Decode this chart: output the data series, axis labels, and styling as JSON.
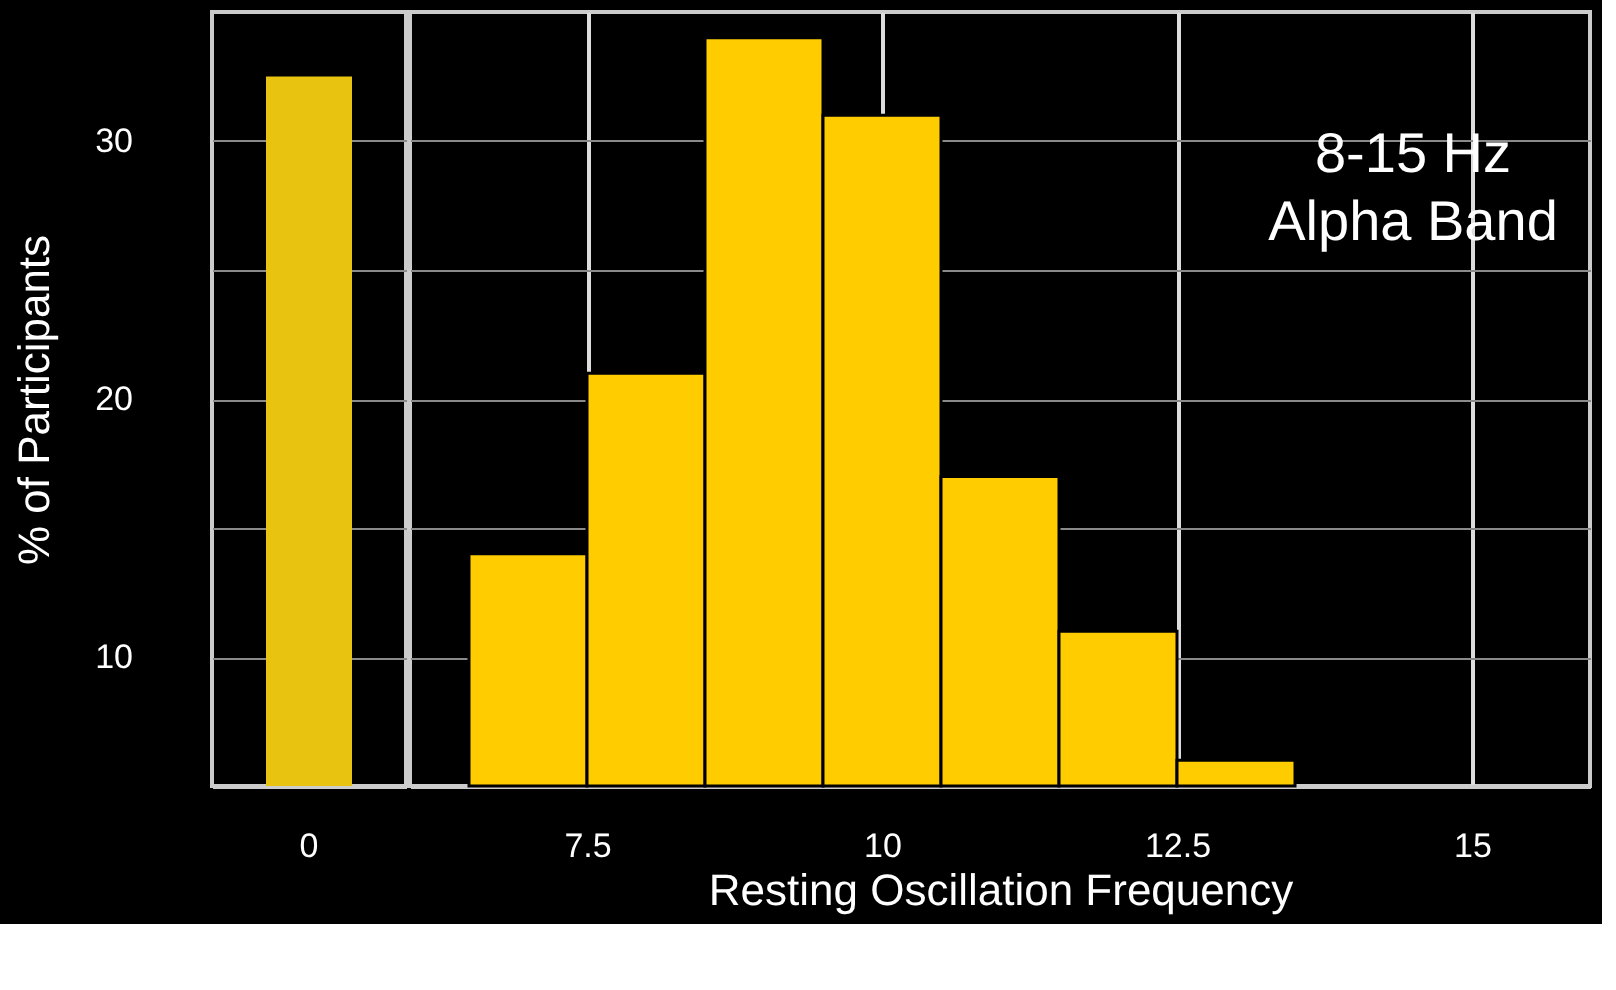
{
  "chart_data": [
    {
      "type": "bar",
      "categories": [
        "0"
      ],
      "values": [
        32.5
      ],
      "color": "#e8c410",
      "ylim": [
        5,
        35
      ],
      "yticks": [
        {
          "value": 5,
          "label": null
        },
        10,
        {
          "value": 15,
          "label": null
        },
        20,
        {
          "value": 25,
          "label": null
        },
        30
      ],
      "ylabel": "% of Participants",
      "grid": "y"
    },
    {
      "type": "histogram",
      "bins": [
        6.5,
        7.5,
        8.5,
        9.5,
        10.5,
        11.5,
        12.5,
        13.5
      ],
      "values": [
        14,
        21,
        34,
        31,
        17,
        11,
        6
      ],
      "color": "#ffcc00",
      "xlim": [
        6,
        16
      ],
      "xticks": [
        7.5,
        10,
        12.5,
        15
      ],
      "ylim": [
        5,
        35
      ],
      "yticks": [
        {
          "value": 5,
          "label": null
        },
        10,
        {
          "value": 15,
          "label": null
        },
        20,
        {
          "value": 25,
          "label": null
        },
        30
      ],
      "xlabel": "Resting Oscillation Frequency",
      "annotations": [
        "8-15 Hz\nAlpha Band"
      ],
      "grid": true,
      "tick_labels": "x"
    }
  ]
}
